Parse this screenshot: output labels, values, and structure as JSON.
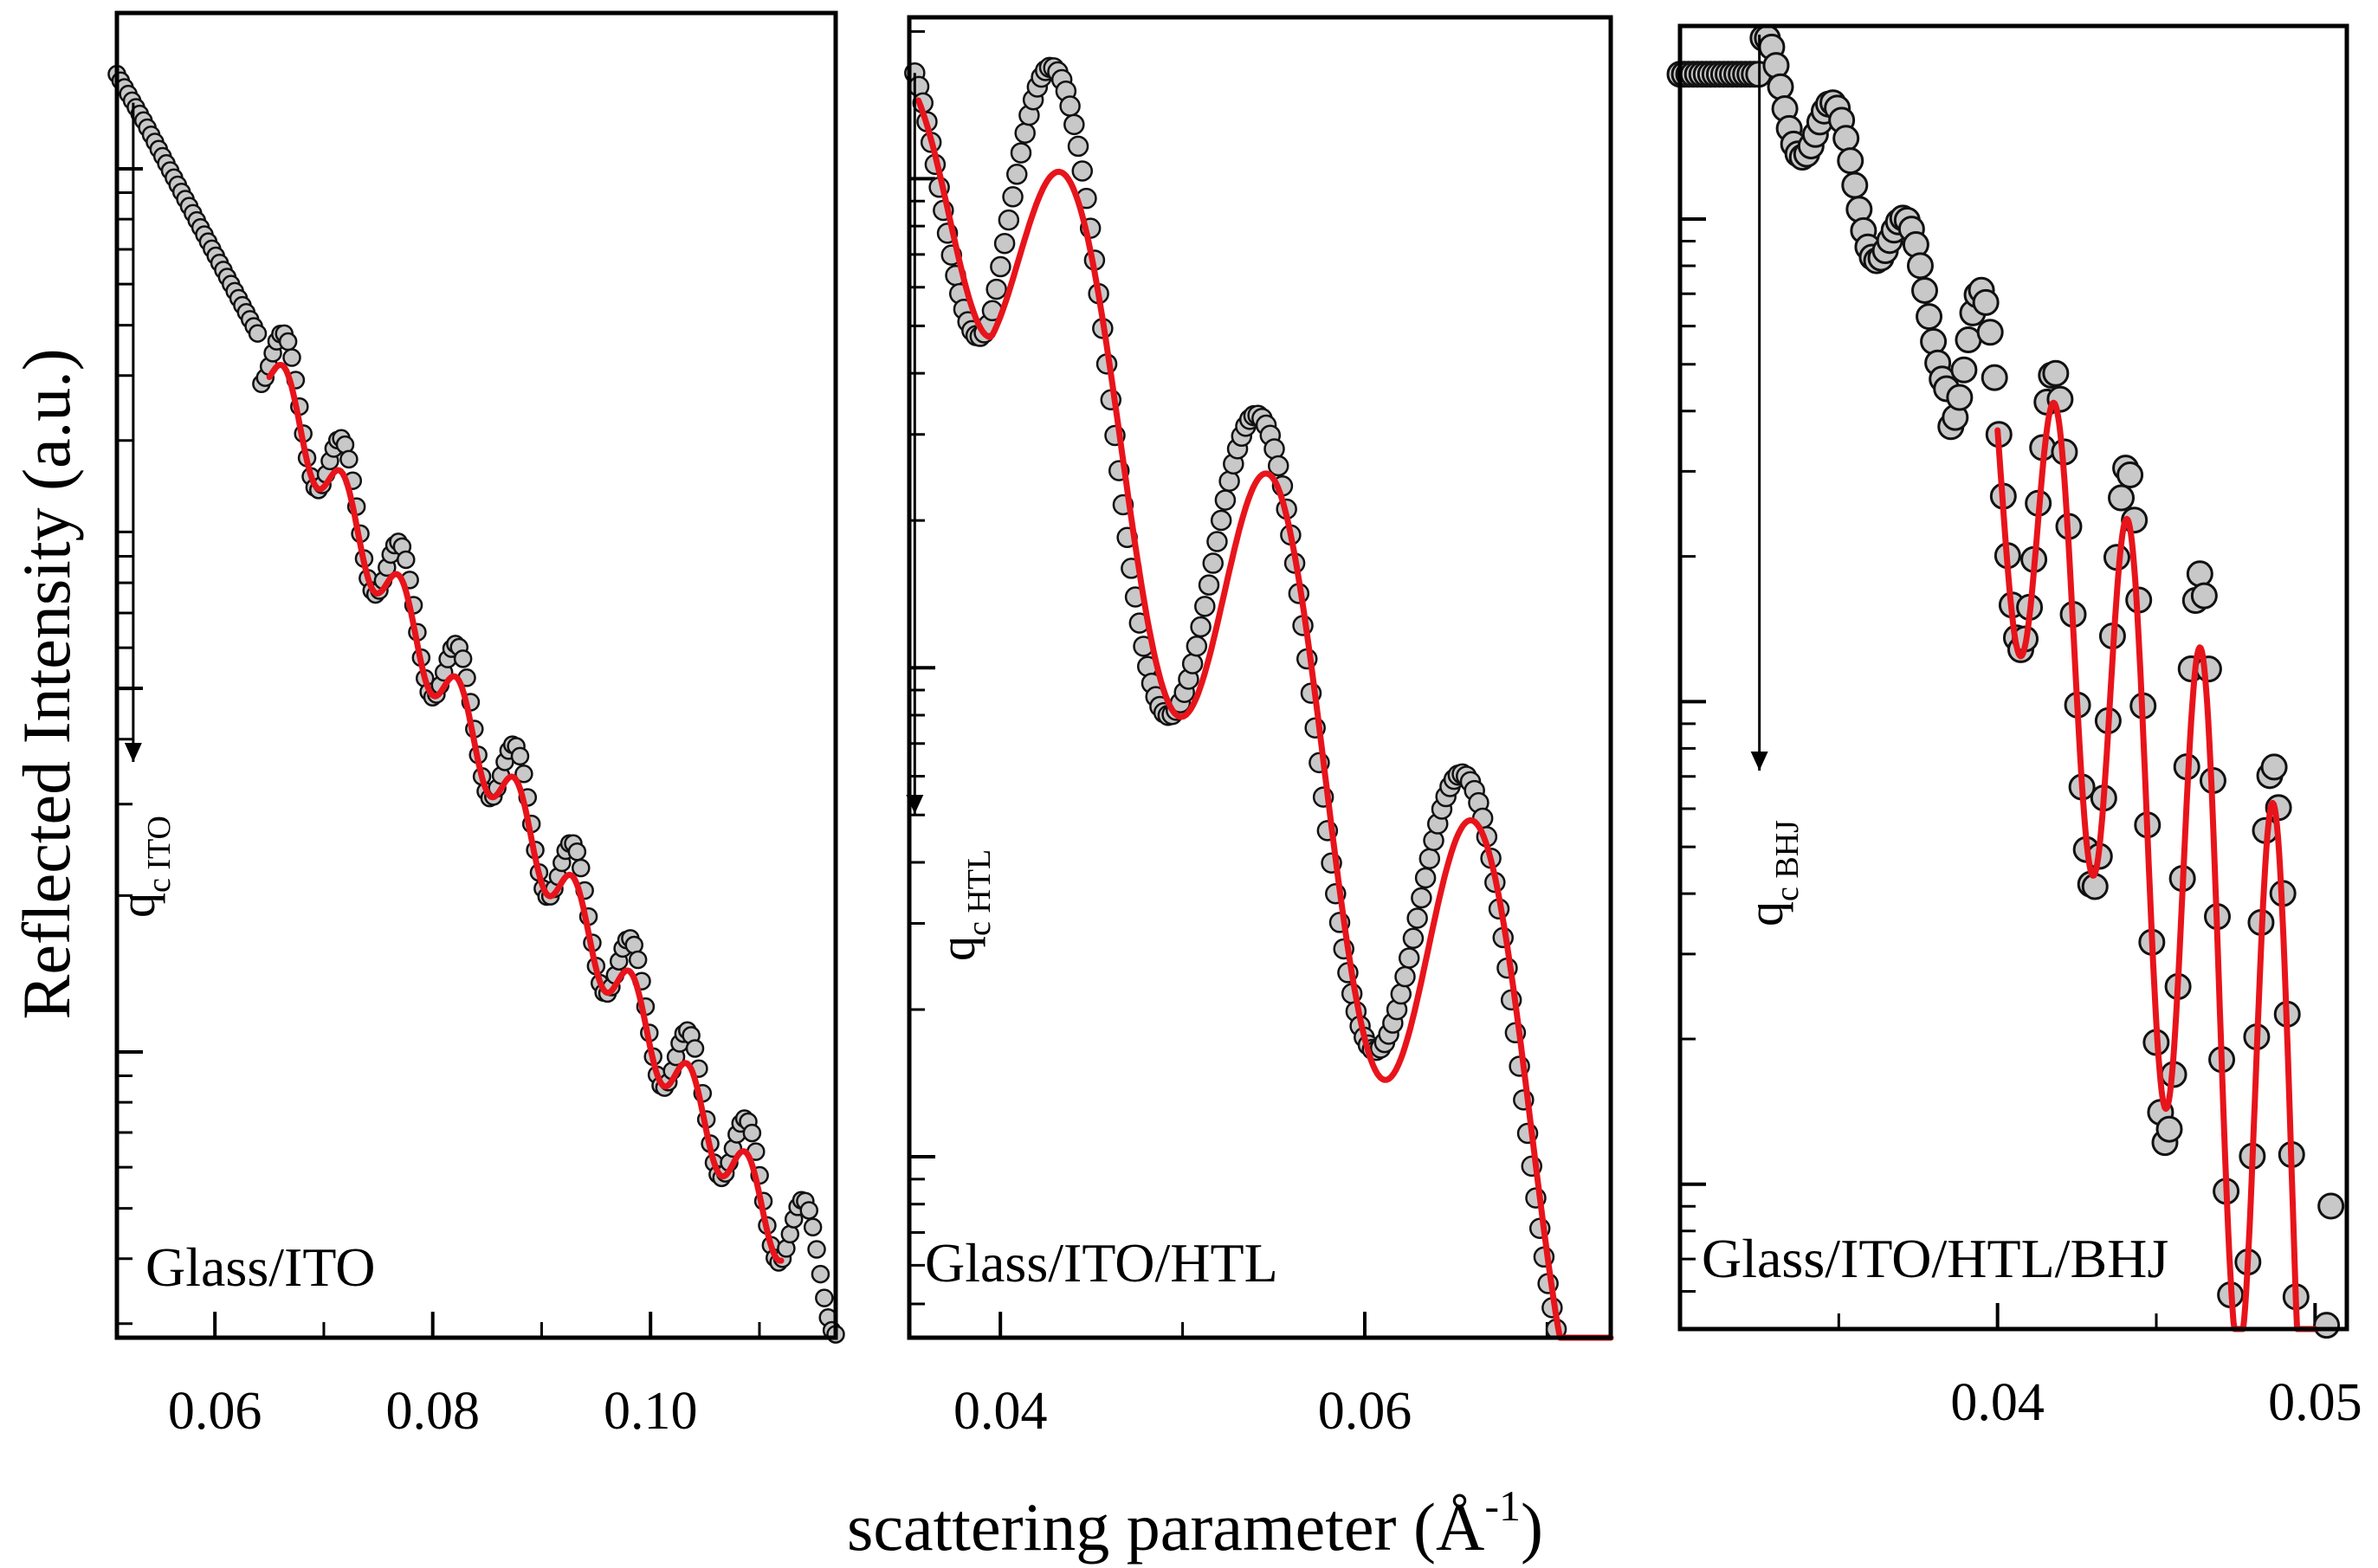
{
  "chart_data": {
    "type": "scatter",
    "y_axis_label": "Reflected Intensity (a.u.)",
    "x_axis_label": "scattering parameter (Å",
    "x_axis_label_sup": "-1",
    "x_axis_label_close": ")",
    "y_scale": "log",
    "y_tick_labels_shown": false,
    "panels": [
      {
        "label": "Glass/ITO",
        "critical_q_text": "q",
        "critical_q_sub": "c ITO",
        "critical_q": 0.0525,
        "xlim": [
          0.051,
          0.117
        ],
        "log_ylim": [
          0,
          2.55
        ],
        "major_y_ticks": [
          0.55,
          1.25,
          2.25
        ],
        "xticks": [
          0.06,
          0.08,
          0.1
        ],
        "xtick_labels": [
          "0.06",
          "0.08",
          "0.10"
        ],
        "data_q_range": [
          0.051,
          0.117
        ],
        "data_n_points": 190,
        "data_model": "baseline from 2.42 falling to 0.1 with fringes of period 0.0053 Å^-1, first fringe at 0.0665",
        "fit_q_range": [
          0.065,
          0.112
        ],
        "fit_model": "same baseline with damped fringes"
      },
      {
        "label": "Glass/ITO/HTL",
        "critical_q_text": "q",
        "critical_q_sub": "c HTL",
        "critical_q": 0.0353,
        "xlim": [
          0.035,
          0.0735
        ],
        "log_ylim": [
          0,
          2.7
        ],
        "major_y_ticks": [
          0.37,
          1.37,
          2.37
        ],
        "xticks": [
          0.04,
          0.06
        ],
        "xtick_labels": [
          "0.04",
          "0.06"
        ],
        "data_q_range": [
          0.0353,
          0.0732
        ],
        "data_n_points": 170,
        "data_model": "Kiessig fringes with period 0.0113 Å^-1, maxima near 0.044, 0.055, 0.066",
        "fit_q_range": [
          0.0355,
          0.0735
        ],
        "fit_model": "same fringes with reduced first-order amplitude"
      },
      {
        "label": "Glass/ITO/HTL/BHJ",
        "critical_q_text": "q",
        "critical_q_sub": "c BHJ",
        "critical_q": 0.0325,
        "xlim": [
          0.03,
          0.051
        ],
        "log_ylim": [
          0,
          2.7
        ],
        "major_y_ticks": [
          0.3,
          1.3,
          2.3
        ],
        "xticks": [
          0.04,
          0.05
        ],
        "xtick_labels": [
          "0.04",
          "0.05"
        ],
        "data_q_range": [
          0.03,
          0.0505
        ],
        "data_n_points": 150,
        "data_model": "plateau to 0.0325, fringes of period 0.0023 Å^-1 from 0.0385, maxima near 0.0395, 0.0418, 0.0440, 0.0463, 0.0486",
        "fit_q_range": [
          0.04,
          0.05
        ],
        "fit_model": "same fringes"
      }
    ]
  }
}
